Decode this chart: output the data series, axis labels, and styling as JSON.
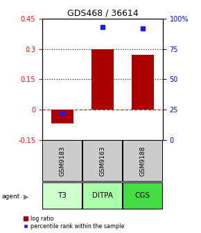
{
  "title": "GDS468 / 36614",
  "categories": [
    "T3",
    "DITPA",
    "CGS"
  ],
  "gsm_labels": [
    "GSM9183",
    "GSM9163",
    "GSM9188"
  ],
  "log_ratios": [
    -0.07,
    0.3,
    0.27
  ],
  "percentile_ranks": [
    22,
    93,
    92
  ],
  "ylim_left": [
    -0.15,
    0.45
  ],
  "ylim_right": [
    0,
    100
  ],
  "yticks_left": [
    -0.15,
    0.0,
    0.15,
    0.3,
    0.45
  ],
  "yticks_right": [
    0,
    25,
    50,
    75,
    100
  ],
  "yticklabels_left": [
    "-0.15",
    "0",
    "0.15",
    "0.3",
    "0.45"
  ],
  "yticklabels_right": [
    "0",
    "25",
    "50",
    "75",
    "100%"
  ],
  "bar_color": "#aa0000",
  "square_color": "#1a1aff",
  "zero_line_color": "#cc2222",
  "dotted_line_color": "#222222",
  "agent_bg_colors": [
    "#ccffcc",
    "#aaffaa",
    "#44dd44"
  ],
  "gsm_bg_color": "#cccccc",
  "legend_bar_label": "log ratio",
  "legend_sq_label": "percentile rank within the sample",
  "bar_width": 0.55
}
